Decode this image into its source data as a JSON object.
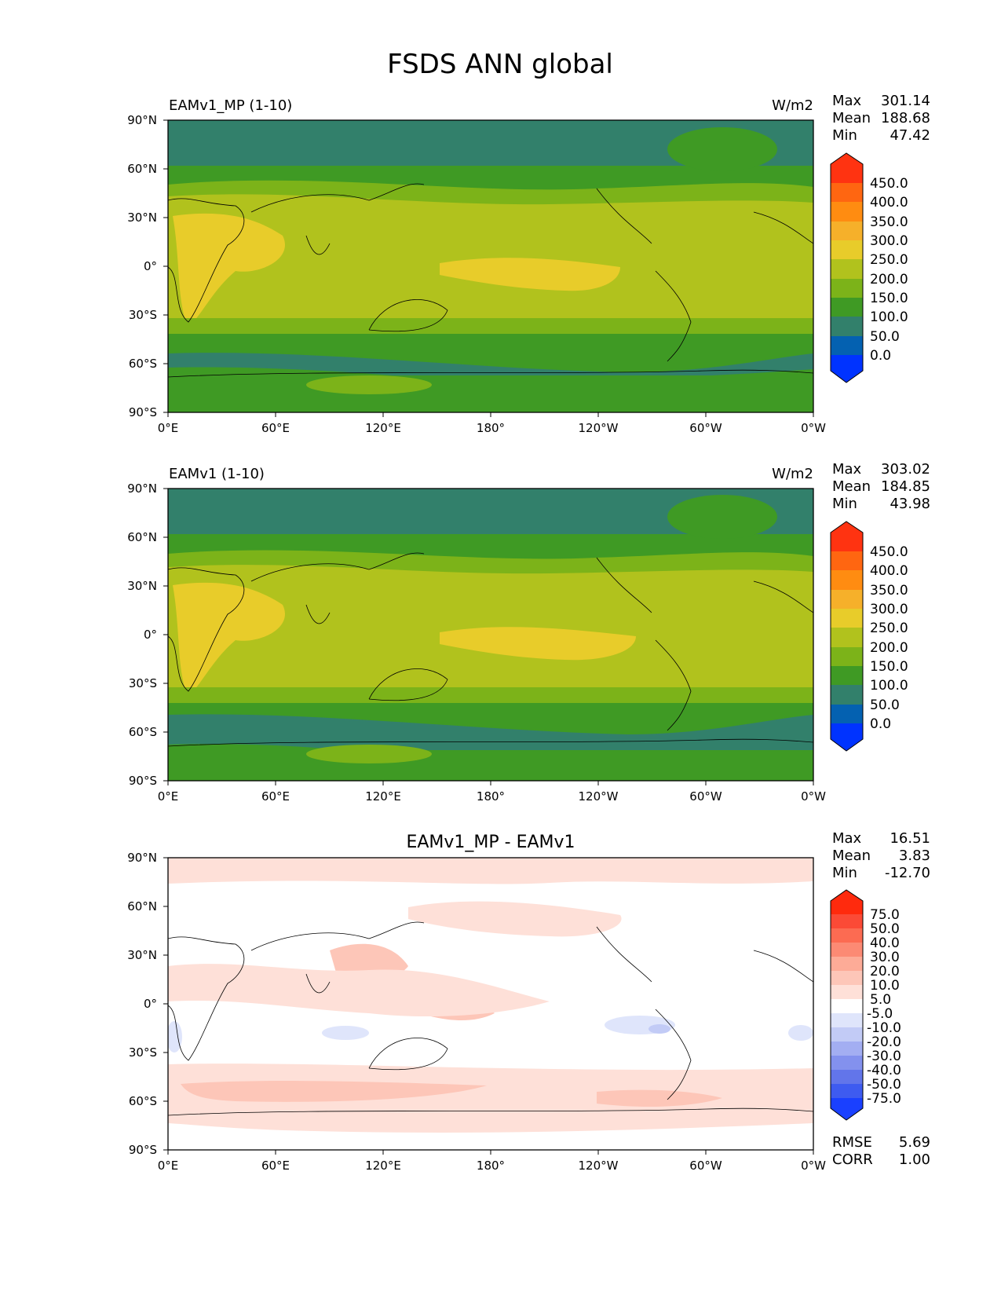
{
  "title": "FSDS ANN global",
  "chart_data": [
    {
      "type": "heatmap",
      "title_left": "EAMv1_MP (1-10)",
      "units": "W/m2",
      "stats": {
        "max_label": "Max",
        "max": "301.14",
        "mean_label": "Mean",
        "mean": "188.68",
        "min_label": "Min",
        "min": "47.42"
      },
      "colorbar": {
        "labels": [
          "450.0",
          "400.0",
          "350.0",
          "300.0",
          "250.0",
          "200.0",
          "150.0",
          "100.0",
          "50.0",
          "0.0"
        ],
        "colors": [
          "#ff3311",
          "#ff6611",
          "#ff8c11",
          "#f6b02a",
          "#e8cc2a",
          "#b1c21d",
          "#7cb319",
          "#3f9a24",
          "#32806b",
          "#0461b1",
          "#0033ff"
        ]
      },
      "xticks": [
        "0°E",
        "60°E",
        "120°E",
        "180°",
        "120°W",
        "60°W",
        "0°W"
      ],
      "yticks": [
        "90°N",
        "60°N",
        "30°N",
        "0°",
        "30°S",
        "60°S",
        "90°S"
      ],
      "lat_range": [
        -90,
        90
      ],
      "lon_range": [
        0,
        360
      ]
    },
    {
      "type": "heatmap",
      "title_left": "EAMv1 (1-10)",
      "units": "W/m2",
      "stats": {
        "max_label": "Max",
        "max": "303.02",
        "mean_label": "Mean",
        "mean": "184.85",
        "min_label": "Min",
        "min": "43.98"
      },
      "colorbar": {
        "labels": [
          "450.0",
          "400.0",
          "350.0",
          "300.0",
          "250.0",
          "200.0",
          "150.0",
          "100.0",
          "50.0",
          "0.0"
        ],
        "colors": [
          "#ff3311",
          "#ff6611",
          "#ff8c11",
          "#f6b02a",
          "#e8cc2a",
          "#b1c21d",
          "#7cb319",
          "#3f9a24",
          "#32806b",
          "#0461b1",
          "#0033ff"
        ]
      },
      "xticks": [
        "0°E",
        "60°E",
        "120°E",
        "180°",
        "120°W",
        "60°W",
        "0°W"
      ],
      "yticks": [
        "90°N",
        "60°N",
        "30°N",
        "0°",
        "30°S",
        "60°S",
        "90°S"
      ],
      "lat_range": [
        -90,
        90
      ],
      "lon_range": [
        0,
        360
      ]
    },
    {
      "type": "heatmap",
      "title_center": "EAMv1_MP - EAMv1",
      "stats": {
        "max_label": "Max",
        "max": "16.51",
        "mean_label": "Mean",
        "mean": "3.83",
        "min_label": "Min",
        "min": "-12.70"
      },
      "colorbar": {
        "labels": [
          "75.0",
          "50.0",
          "40.0",
          "30.0",
          "20.0",
          "10.0",
          "5.0",
          "-5.0",
          "-10.0",
          "-20.0",
          "-30.0",
          "-40.0",
          "-50.0",
          "-75.0"
        ],
        "colors": [
          "#ff2a0d",
          "#fb4a36",
          "#fc6b52",
          "#fc8a74",
          "#fdab97",
          "#fdc6b8",
          "#fee0d8",
          "#ffffff",
          "#dfe5fb",
          "#c2cbf6",
          "#a3aef2",
          "#8391ee",
          "#6275ea",
          "#3e5bf0",
          "#1a40ff"
        ]
      },
      "xticks": [
        "0°E",
        "60°E",
        "120°E",
        "180°",
        "120°W",
        "60°W",
        "0°W"
      ],
      "yticks": [
        "90°N",
        "60°N",
        "30°N",
        "0°",
        "30°S",
        "60°S",
        "90°S"
      ],
      "metrics": {
        "rmse_label": "RMSE",
        "rmse": "5.69",
        "corr_label": "CORR",
        "corr": "1.00"
      },
      "lat_range": [
        -90,
        90
      ],
      "lon_range": [
        0,
        360
      ]
    }
  ]
}
